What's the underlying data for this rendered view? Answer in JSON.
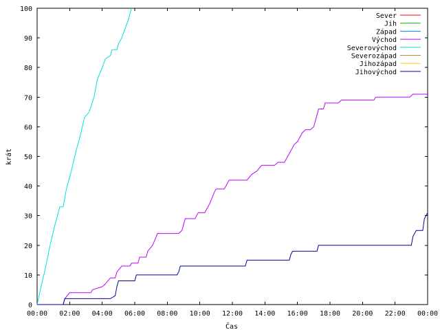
{
  "chart_data": {
    "type": "line",
    "title": "",
    "xlabel": "Čas",
    "ylabel": "krát",
    "xlim": [
      0,
      24
    ],
    "ylim": [
      0,
      100
    ],
    "x_ticks": [
      {
        "v": 0,
        "label": "00:00"
      },
      {
        "v": 2,
        "label": "02:00"
      },
      {
        "v": 4,
        "label": "04:00"
      },
      {
        "v": 6,
        "label": "06:00"
      },
      {
        "v": 8,
        "label": "08:00"
      },
      {
        "v": 10,
        "label": "10:00"
      },
      {
        "v": 12,
        "label": "12:00"
      },
      {
        "v": 14,
        "label": "14:00"
      },
      {
        "v": 16,
        "label": "16:00"
      },
      {
        "v": 18,
        "label": "18:00"
      },
      {
        "v": 20,
        "label": "20:00"
      },
      {
        "v": 22,
        "label": "22:00"
      },
      {
        "v": 24,
        "label": "00:00"
      }
    ],
    "y_ticks": [
      0,
      10,
      20,
      30,
      40,
      50,
      60,
      70,
      80,
      90,
      100
    ],
    "grid": false,
    "legend_position": "top-right",
    "series": [
      {
        "name": "Sever",
        "color": "#ff0000",
        "points": []
      },
      {
        "name": "Jih",
        "color": "#00c000",
        "points": []
      },
      {
        "name": "Západ",
        "color": "#0080ff",
        "points": []
      },
      {
        "name": "Východ",
        "color": "#c000ff",
        "points": [
          [
            0.0,
            0
          ],
          [
            1.6,
            0
          ],
          [
            1.7,
            2
          ],
          [
            2.0,
            4
          ],
          [
            3.3,
            4
          ],
          [
            3.4,
            5
          ],
          [
            4.0,
            6
          ],
          [
            4.2,
            7
          ],
          [
            4.5,
            9
          ],
          [
            4.8,
            9
          ],
          [
            4.9,
            11
          ],
          [
            5.2,
            13
          ],
          [
            5.7,
            13
          ],
          [
            5.8,
            14
          ],
          [
            6.2,
            14
          ],
          [
            6.3,
            16
          ],
          [
            6.7,
            16
          ],
          [
            6.8,
            18
          ],
          [
            7.1,
            20
          ],
          [
            7.4,
            24
          ],
          [
            8.7,
            24
          ],
          [
            8.9,
            25
          ],
          [
            9.1,
            29
          ],
          [
            9.7,
            29
          ],
          [
            9.9,
            31
          ],
          [
            10.3,
            31
          ],
          [
            10.6,
            34
          ],
          [
            10.9,
            38
          ],
          [
            11.0,
            39
          ],
          [
            11.5,
            39
          ],
          [
            11.7,
            41
          ],
          [
            11.8,
            42
          ],
          [
            12.9,
            42
          ],
          [
            13.2,
            44
          ],
          [
            13.5,
            45
          ],
          [
            13.8,
            47
          ],
          [
            14.6,
            47
          ],
          [
            14.8,
            48
          ],
          [
            15.2,
            48
          ],
          [
            15.4,
            50
          ],
          [
            15.8,
            54
          ],
          [
            16.0,
            55
          ],
          [
            16.3,
            58
          ],
          [
            16.5,
            59
          ],
          [
            16.8,
            59
          ],
          [
            17.0,
            60
          ],
          [
            17.2,
            64
          ],
          [
            17.3,
            66
          ],
          [
            17.6,
            66
          ],
          [
            17.7,
            68
          ],
          [
            18.5,
            68
          ],
          [
            18.7,
            69
          ],
          [
            20.7,
            69
          ],
          [
            20.8,
            70
          ],
          [
            22.9,
            70
          ],
          [
            23.1,
            71
          ],
          [
            24.0,
            71
          ]
        ]
      },
      {
        "name": "Severovýchod",
        "color": "#00e0e0",
        "points": [
          [
            0.0,
            0
          ],
          [
            0.2,
            5
          ],
          [
            0.5,
            12
          ],
          [
            0.8,
            20
          ],
          [
            1.1,
            27
          ],
          [
            1.4,
            33
          ],
          [
            1.6,
            33
          ],
          [
            1.8,
            39
          ],
          [
            2.1,
            45
          ],
          [
            2.4,
            52
          ],
          [
            2.7,
            58
          ],
          [
            2.9,
            63
          ],
          [
            3.2,
            65
          ],
          [
            3.5,
            70
          ],
          [
            3.7,
            76
          ],
          [
            4.0,
            80
          ],
          [
            4.2,
            83
          ],
          [
            4.5,
            84
          ],
          [
            4.6,
            86
          ],
          [
            4.9,
            86
          ],
          [
            5.0,
            88
          ],
          [
            5.2,
            90
          ],
          [
            5.4,
            93
          ],
          [
            5.6,
            96
          ],
          [
            5.8,
            100
          ]
        ]
      },
      {
        "name": "Severozápad",
        "color": "#c08040",
        "points": []
      },
      {
        "name": "Jihozápad",
        "color": "#ffd000",
        "points": []
      },
      {
        "name": "Jihovýchod",
        "color": "#0000a0",
        "points": [
          [
            0.0,
            0
          ],
          [
            1.6,
            0
          ],
          [
            1.7,
            2
          ],
          [
            4.5,
            2
          ],
          [
            4.8,
            3
          ],
          [
            4.9,
            6
          ],
          [
            5.0,
            8
          ],
          [
            6.0,
            8
          ],
          [
            6.1,
            10
          ],
          [
            8.6,
            10
          ],
          [
            8.7,
            11
          ],
          [
            8.8,
            13
          ],
          [
            12.8,
            13
          ],
          [
            12.9,
            15
          ],
          [
            15.5,
            15
          ],
          [
            15.6,
            17
          ],
          [
            15.7,
            18
          ],
          [
            17.2,
            18
          ],
          [
            17.3,
            20
          ],
          [
            23.0,
            20
          ],
          [
            23.1,
            23
          ],
          [
            23.3,
            25
          ],
          [
            23.7,
            25
          ],
          [
            23.8,
            29
          ],
          [
            24.0,
            31
          ]
        ]
      }
    ]
  }
}
